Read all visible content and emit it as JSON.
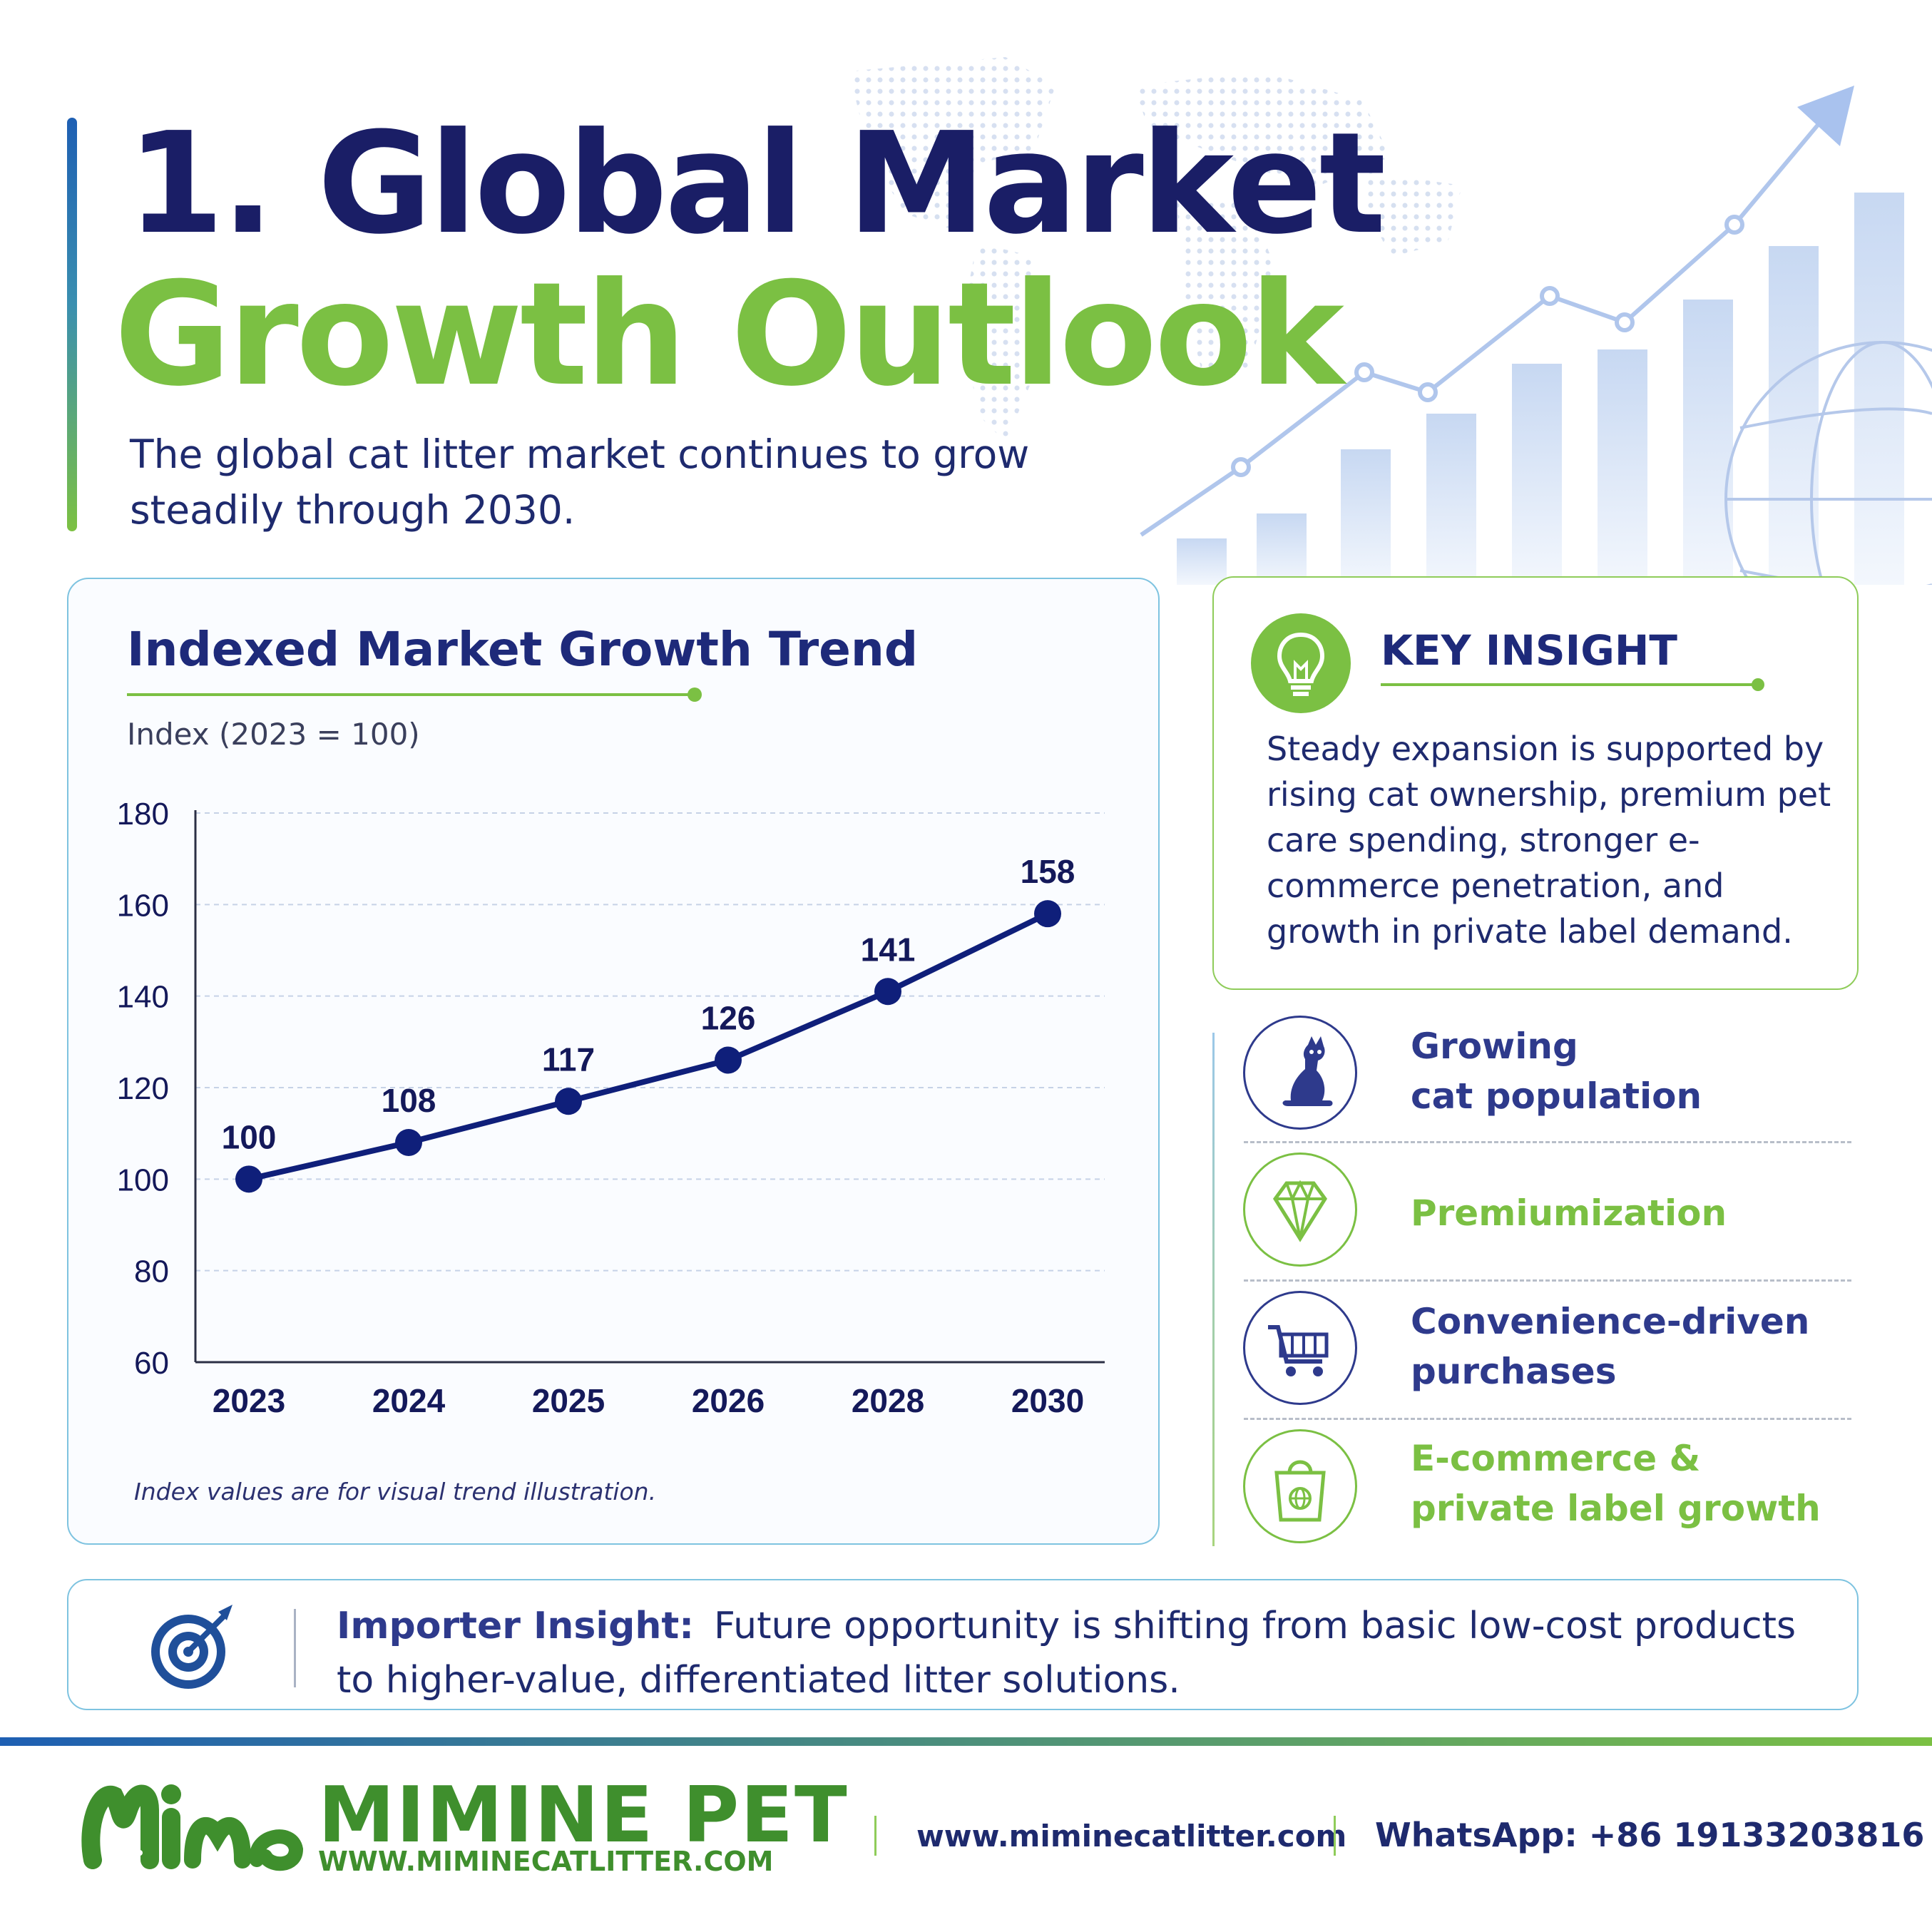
{
  "header": {
    "title_line1": "1. Global Market",
    "title_line2": "Growth Outlook",
    "subtitle": "The global cat litter market continues to grow steadily through 2030."
  },
  "chart_card": {
    "title": "Indexed Market Growth Trend",
    "index_label": "Index (2023 = 100)",
    "note": "Index values are for visual trend illustration."
  },
  "chart_data": {
    "type": "line",
    "title": "Indexed Market Growth Trend",
    "xlabel": "",
    "ylabel": "Index (2023 = 100)",
    "categories": [
      "2023",
      "2024",
      "2025",
      "2026",
      "2028",
      "2030"
    ],
    "series": [
      {
        "name": "",
        "values": [
          100,
          108,
          117,
          126,
          141,
          158
        ]
      }
    ],
    "data_labels": [
      "100",
      "108",
      "117",
      "126",
      "141",
      "158"
    ],
    "ylim": [
      60,
      180
    ],
    "yticks": [
      60,
      80,
      100,
      120,
      140,
      160,
      180
    ],
    "grid": true,
    "line_color": "#0f1f7a"
  },
  "insight": {
    "title": "KEY INSIGHT",
    "text": "Steady expansion is supported by rising cat ownership, premium pet care spending, stronger e-commerce penetration, and growth in private label demand."
  },
  "drivers": [
    {
      "line1": "Growing",
      "line2": "cat population",
      "icon": "cat-icon",
      "color": "#2e3a8c"
    },
    {
      "line1": "Premiumization",
      "line2": "",
      "icon": "diamond-icon",
      "color": "#7bc043"
    },
    {
      "line1": "Convenience-driven",
      "line2": "purchases",
      "icon": "shopping-cart-icon",
      "color": "#2e3a8c"
    },
    {
      "line1": "E-commerce &",
      "line2": "private label growth",
      "icon": "shopping-bag-icon",
      "color": "#7bc043"
    }
  ],
  "importer": {
    "label": "Importer Insight:",
    "text": "Future opportunity is shifting from basic low-cost products to higher-value, differentiated litter solutions."
  },
  "footer": {
    "brand": "MIMINE PET",
    "brand_url": "WWW.MIMINECATLITTER.COM",
    "website": "www.miminecatlitter.com",
    "whatsapp": "WhatsApp: +86 19133203816"
  },
  "colors": {
    "navy": "#1a1e66",
    "green": "#7bc043",
    "brand_green": "#3f8f2d"
  }
}
